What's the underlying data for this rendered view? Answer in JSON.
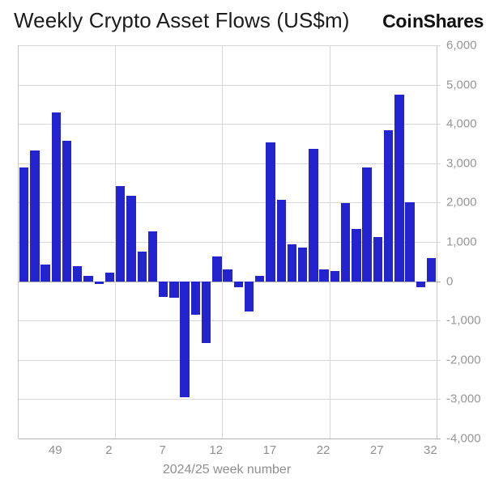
{
  "header": {
    "title": "Weekly Crypto Asset Flows (US$m)",
    "logo_left": "Co",
    "logo_right": "nShares",
    "logo_full": "CoinShares"
  },
  "chart_data": {
    "type": "bar",
    "title": "Weekly Crypto Asset Flows (US$m)",
    "xlabel": "2024/25 week number",
    "ylabel": "",
    "ylim": [
      -4000,
      6000
    ],
    "ytick_step": 1000,
    "grid": true,
    "legend": "none",
    "bar_color": "#2423d0",
    "categories": [
      "46",
      "47",
      "48",
      "49",
      "50",
      "51",
      "52",
      "1",
      "2",
      "3",
      "4",
      "5",
      "6",
      "7",
      "8",
      "9",
      "10",
      "11",
      "12",
      "13",
      "14",
      "15",
      "16",
      "17",
      "18",
      "19",
      "20",
      "21",
      "22",
      "23",
      "24",
      "25",
      "26",
      "27",
      "28",
      "29",
      "30",
      "31",
      "32"
    ],
    "values": [
      2900,
      3320,
      430,
      4300,
      3580,
      390,
      140,
      -80,
      210,
      2430,
      2170,
      760,
      1260,
      -400,
      -430,
      -2950,
      -860,
      -1570,
      630,
      300,
      -160,
      -760,
      130,
      3530,
      2080,
      930,
      860,
      3360,
      310,
      270,
      1990,
      1320,
      2900,
      1120,
      3830,
      4750,
      2010,
      -150,
      580
    ],
    "y_tick_labels": [
      "6,000",
      "5,000",
      "4,000",
      "3,000",
      "2,000",
      "1,000",
      "0",
      "-1,000",
      "-2,000",
      "-3,000",
      "-4,000"
    ],
    "y_tick_values": [
      6000,
      5000,
      4000,
      3000,
      2000,
      1000,
      0,
      -1000,
      -2000,
      -3000,
      -4000
    ],
    "x_tick_labels": [
      "49",
      "2",
      "7",
      "12",
      "17",
      "22",
      "27",
      "32"
    ],
    "x_tick_indices": [
      3,
      8,
      13,
      18,
      23,
      28,
      33,
      38
    ],
    "v_gridline_after_indices": [
      8,
      18,
      28
    ]
  },
  "colors": {
    "bar": "#2423d0",
    "grid": "#d7d7d7",
    "zero_line": "#a9a9a9",
    "axis_border": "#c8c8c8",
    "tick_label": "#8f8f8f",
    "title_text": "#1c1c1c"
  }
}
